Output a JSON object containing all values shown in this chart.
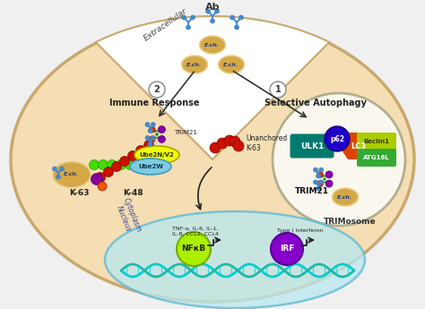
{
  "bg_color": "#f0f0f0",
  "cell_color": "#f5deb3",
  "cell_edge_color": "#c8a96e",
  "nucleus_color": "#b8e8f0",
  "nucleus_edge_color": "#5bb8d4",
  "trimosome_circle_color": "#fafaf5",
  "extracellular_label": "Extracellular",
  "immune_response_label": "Immune Response",
  "selective_autophagy_label": "Selective Autophagy",
  "trimosome_label": "TRIMosome",
  "ab_label": "Ab",
  "trim21_label1": "TRIM21",
  "trim21_label2": "TRIM21",
  "k48_label": "K-48",
  "k63_label": "K-63",
  "ube2nv2_label": "Ube2N/V2",
  "ube2w_label": "Ube2W",
  "unanchored_k63_label": "Unanchored\nK-63",
  "tnf_label": "TNF-α, IL-6, IL-1,\nIL-8, CCL2, CCL4",
  "type_i_interferon_label": "Type I Interferon",
  "nfkb_label": "NFκB",
  "irf_label": "IRF",
  "p62_label": "p62",
  "lc3_label": "LC3",
  "beclin1_label": "Beclin1",
  "atg16l_label": "ATG16L",
  "ulk1_label": "ULK1",
  "ech_label": "E.ch.",
  "circle1_label": "1",
  "circle2_label": "2",
  "ecolor_gold": "#d4a847",
  "ecolor_gold_light": "#e8c878",
  "color_green": "#228b22",
  "color_yellow": "#eeff00",
  "color_blue_ab": "#4488cc",
  "color_purple": "#7700bb",
  "color_red": "#cc1100",
  "color_orange": "#ff8c00",
  "color_teal": "#007b6e",
  "color_dark_green": "#006400",
  "color_violet": "#8800cc",
  "color_lime": "#44dd00",
  "color_cyan_dna": "#00ced1",
  "color_lc3": "#dd3300",
  "color_p62": "#2200cc",
  "color_beclin": "#aacc00",
  "color_nfkb": "#aaee00",
  "color_irf": "#8800cc"
}
